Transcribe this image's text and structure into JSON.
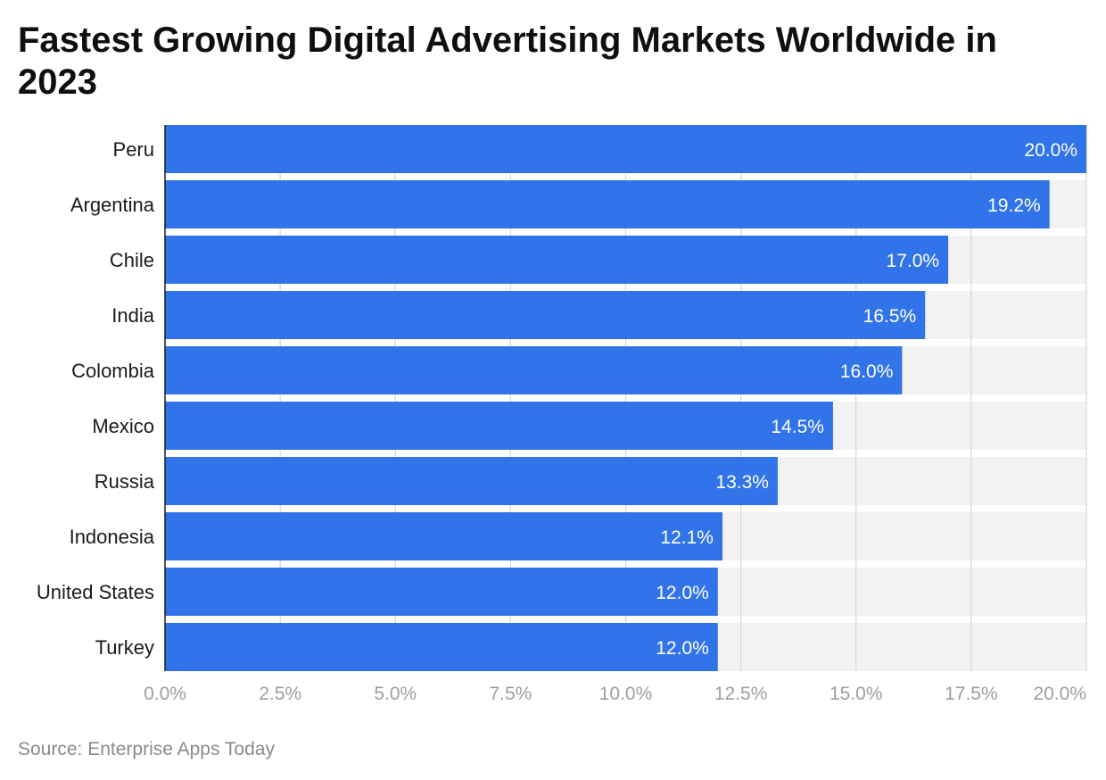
{
  "chart_data": {
    "type": "bar",
    "orientation": "horizontal",
    "title": "Fastest Growing Digital Advertising Markets Worldwide in 2023",
    "categories": [
      "Peru",
      "Argentina",
      "Chile",
      "India",
      "Colombia",
      "Mexico",
      "Russia",
      "Indonesia",
      "United States",
      "Turkey"
    ],
    "values": [
      20.0,
      19.2,
      17.0,
      16.5,
      16.0,
      14.5,
      13.3,
      12.1,
      12.0,
      12.0
    ],
    "value_labels": [
      "20.0%",
      "19.2%",
      "17.0%",
      "16.5%",
      "16.0%",
      "14.5%",
      "13.3%",
      "12.1%",
      "12.0%",
      "12.0%"
    ],
    "xlim": [
      0,
      20
    ],
    "xticks": [
      0,
      2.5,
      5,
      7.5,
      10,
      12.5,
      15,
      17.5,
      20
    ],
    "xtick_labels": [
      "0.0%",
      "2.5%",
      "5.0%",
      "7.5%",
      "10.0%",
      "12.5%",
      "15.0%",
      "17.5%",
      "20.0%"
    ],
    "xlabel": "",
    "ylabel": "",
    "grid": true,
    "colors": {
      "bar": "#3174e9",
      "track": "#f2f2f2",
      "grid": "#d6d6d6",
      "tick_label": "#9e9e9e",
      "category_label": "#1a1a1a",
      "value_label": "#ffffff"
    },
    "source": "Source: Enterprise Apps Today"
  }
}
